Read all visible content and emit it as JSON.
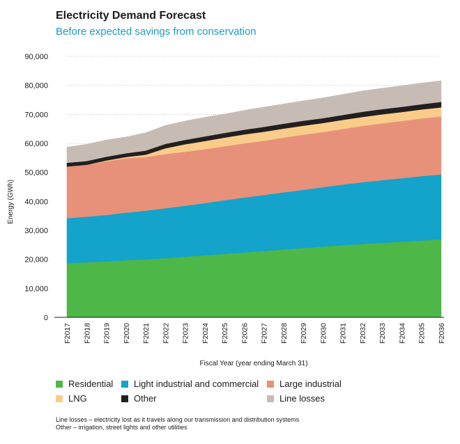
{
  "chart_data": {
    "type": "area",
    "stacked": true,
    "title": "Electricity Demand Forecast",
    "subtitle": "Before expected savings from conservation",
    "xlabel": "Fiscal Year (year ending March 31)",
    "ylabel": "Energy (GWh)",
    "ylim": [
      0,
      90000
    ],
    "yticks": [
      0,
      10000,
      20000,
      30000,
      40000,
      50000,
      60000,
      70000,
      80000,
      90000
    ],
    "ytick_labels": [
      "0",
      "10,000",
      "20,000",
      "30,000",
      "40,000",
      "50,000",
      "60,000",
      "70,000",
      "80,000",
      "90,000"
    ],
    "grid": "horizontal dotted",
    "categories": [
      "F2017",
      "F2018",
      "F2019",
      "F2020",
      "F2021",
      "F2022",
      "F2023",
      "F2024",
      "F2025",
      "F2026",
      "F2027",
      "F2028",
      "F2029",
      "F2030",
      "F2031",
      "F2032",
      "F2033",
      "F2034",
      "F2035",
      "F2036"
    ],
    "series": [
      {
        "name": "Residential",
        "color": "#4db748",
        "values": [
          18700,
          19000,
          19300,
          19700,
          20000,
          20400,
          20900,
          21400,
          21900,
          22400,
          22900,
          23400,
          23900,
          24400,
          24900,
          25300,
          25700,
          26100,
          26500,
          26900
        ]
      },
      {
        "name": "Light industrial and commercial",
        "color": "#13a3cb",
        "values": [
          15500,
          15700,
          16000,
          16400,
          16800,
          17200,
          17600,
          18000,
          18500,
          18900,
          19300,
          19700,
          20100,
          20500,
          20900,
          21300,
          21600,
          21900,
          22200,
          22400
        ]
      },
      {
        "name": "Large industrial",
        "color": "#e8917a",
        "values": [
          17800,
          17900,
          18500,
          18800,
          18500,
          18700,
          18600,
          18600,
          18600,
          18700,
          18700,
          18900,
          19000,
          19000,
          19200,
          19400,
          19600,
          19700,
          19900,
          20000
        ]
      },
      {
        "name": "LNG",
        "color": "#f9cc8a",
        "values": [
          0,
          0,
          300,
          400,
          800,
          2000,
          2600,
          2800,
          3000,
          3100,
          3100,
          3100,
          3100,
          3100,
          3100,
          3100,
          3100,
          3100,
          3100,
          3100
        ]
      },
      {
        "name": "Other",
        "color": "#231f20",
        "values": [
          1300,
          1300,
          1300,
          1300,
          1400,
          1500,
          1500,
          1600,
          1600,
          1600,
          1700,
          1700,
          1700,
          1700,
          1700,
          1800,
          1800,
          1800,
          1800,
          1900
        ]
      },
      {
        "name": "Line losses",
        "color": "#c7bcb4",
        "values": [
          5400,
          5800,
          5800,
          5600,
          6200,
          6400,
          6500,
          6600,
          6500,
          6700,
          6800,
          6800,
          6900,
          7000,
          7100,
          7200,
          7200,
          7300,
          7300,
          7300
        ]
      }
    ]
  },
  "notes": [
    "Line losses – electricity lost as it travels along our transmission and distribution systems",
    "Other – irrigation, street lights and other utilities"
  ]
}
